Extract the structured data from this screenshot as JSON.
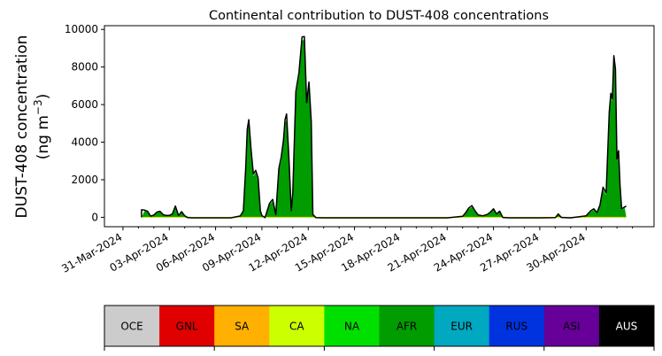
{
  "chart_data": {
    "type": "area",
    "title": "Continental contribution to DUST-408 concentrations",
    "ylabel_main": "DUST-408 concentration",
    "ylabel_unit": "(ng m",
    "ylabel_unit_sup": "−3",
    "ylabel_unit_close": ")",
    "xlabel": "",
    "ylim": [
      -500,
      10200
    ],
    "xlim": [
      -1.2,
      34.4
    ],
    "yticks": [
      0,
      2000,
      4000,
      6000,
      8000,
      10000
    ],
    "ytick_labels": [
      "0",
      "2000",
      "4000",
      "6000",
      "8000",
      "10000"
    ],
    "xticks": [
      0,
      3,
      6,
      9,
      12,
      15,
      18,
      21,
      24,
      27,
      30
    ],
    "xtick_labels": [
      "31-Mar-2024",
      "03-Apr-2024",
      "06-Apr-2024",
      "09-Apr-2024",
      "12-Apr-2024",
      "15-Apr-2024",
      "18-Apr-2024",
      "21-Apr-2024",
      "24-Apr-2024",
      "27-Apr-2024",
      "30-Apr-2024"
    ],
    "x_unit": "days after 31-Mar-2024",
    "total_line_color": "#000000",
    "series": [
      {
        "name": "NA",
        "color": "#00e000",
        "points": [
          [
            1.2,
            0
          ],
          [
            1.4,
            350
          ],
          [
            1.6,
            300
          ],
          [
            1.8,
            50
          ],
          [
            2.0,
            100
          ],
          [
            2.2,
            250
          ],
          [
            2.4,
            300
          ],
          [
            2.6,
            120
          ],
          [
            2.8,
            80
          ],
          [
            3.0,
            80
          ],
          [
            3.2,
            150
          ],
          [
            3.4,
            500
          ],
          [
            3.6,
            80
          ],
          [
            3.8,
            250
          ],
          [
            4.0,
            60
          ],
          [
            4.2,
            30
          ],
          [
            4.5,
            20
          ],
          [
            5.0,
            20
          ],
          [
            6.0,
            20
          ],
          [
            7.0,
            20
          ],
          [
            7.6,
            50
          ],
          [
            7.8,
            300
          ],
          [
            7.95,
            2500
          ],
          [
            8.05,
            4500
          ],
          [
            8.15,
            5100
          ],
          [
            8.3,
            3500
          ],
          [
            8.45,
            2200
          ],
          [
            8.6,
            2400
          ],
          [
            8.75,
            2000
          ],
          [
            8.9,
            300
          ],
          [
            9.0,
            80
          ],
          [
            9.2,
            20
          ],
          [
            9.5,
            700
          ],
          [
            9.7,
            850
          ],
          [
            9.9,
            100
          ],
          [
            10.1,
            2500
          ],
          [
            10.25,
            3000
          ],
          [
            10.4,
            4000
          ],
          [
            10.5,
            5000
          ],
          [
            10.6,
            5200
          ],
          [
            10.75,
            3000
          ],
          [
            10.9,
            300
          ],
          [
            11.0,
            1200
          ],
          [
            11.2,
            6500
          ],
          [
            11.4,
            7500
          ],
          [
            11.6,
            9400
          ],
          [
            11.75,
            9500
          ],
          [
            11.9,
            6000
          ],
          [
            12.05,
            7000
          ],
          [
            12.2,
            5000
          ],
          [
            12.3,
            100
          ],
          [
            12.5,
            20
          ],
          [
            13,
            20
          ],
          [
            15,
            20
          ],
          [
            17,
            20
          ],
          [
            19,
            20
          ],
          [
            21,
            20
          ],
          [
            22,
            30
          ],
          [
            22.2,
            200
          ],
          [
            22.4,
            450
          ],
          [
            22.6,
            550
          ],
          [
            22.8,
            300
          ],
          [
            23.0,
            100
          ],
          [
            23.3,
            50
          ],
          [
            23.6,
            120
          ],
          [
            23.8,
            250
          ],
          [
            24.0,
            400
          ],
          [
            24.2,
            150
          ],
          [
            24.4,
            300
          ],
          [
            24.6,
            30
          ],
          [
            25,
            20
          ],
          [
            27,
            20
          ],
          [
            28.0,
            20
          ],
          [
            28.2,
            150
          ],
          [
            28.4,
            30
          ],
          [
            29,
            20
          ],
          [
            30.0,
            50
          ],
          [
            30.3,
            300
          ],
          [
            30.5,
            400
          ],
          [
            30.7,
            200
          ],
          [
            30.9,
            600
          ],
          [
            31.1,
            1500
          ],
          [
            31.3,
            1200
          ],
          [
            31.5,
            5500
          ],
          [
            31.6,
            6400
          ],
          [
            31.7,
            6200
          ],
          [
            31.8,
            8400
          ],
          [
            31.9,
            7800
          ],
          [
            32.0,
            3000
          ],
          [
            32.1,
            3400
          ],
          [
            32.2,
            1600
          ],
          [
            32.3,
            400
          ],
          [
            32.5,
            500
          ],
          [
            32.6,
            0
          ]
        ]
      },
      {
        "name": "AFR",
        "color": "#009c00",
        "points": [
          [
            1.2,
            0
          ],
          [
            1.4,
            330
          ],
          [
            1.6,
            280
          ],
          [
            1.8,
            40
          ],
          [
            2.0,
            90
          ],
          [
            2.2,
            230
          ],
          [
            2.4,
            280
          ],
          [
            2.6,
            110
          ],
          [
            2.8,
            70
          ],
          [
            3.0,
            70
          ],
          [
            3.2,
            140
          ],
          [
            3.4,
            480
          ],
          [
            3.6,
            70
          ],
          [
            3.8,
            230
          ],
          [
            4.0,
            50
          ],
          [
            4.2,
            20
          ],
          [
            4.5,
            10
          ],
          [
            5.0,
            10
          ],
          [
            6.0,
            10
          ],
          [
            7.0,
            10
          ],
          [
            7.6,
            40
          ],
          [
            7.8,
            280
          ],
          [
            7.95,
            2450
          ],
          [
            8.05,
            4450
          ],
          [
            8.15,
            5050
          ],
          [
            8.3,
            3450
          ],
          [
            8.45,
            2150
          ],
          [
            8.6,
            2350
          ],
          [
            8.75,
            1950
          ],
          [
            8.9,
            280
          ],
          [
            9.0,
            70
          ],
          [
            9.2,
            10
          ],
          [
            9.5,
            680
          ],
          [
            9.7,
            830
          ],
          [
            9.9,
            90
          ],
          [
            10.1,
            2450
          ],
          [
            10.25,
            2950
          ],
          [
            10.4,
            3950
          ],
          [
            10.5,
            4950
          ],
          [
            10.6,
            5150
          ],
          [
            10.75,
            2950
          ],
          [
            10.9,
            280
          ],
          [
            11.0,
            1150
          ],
          [
            11.2,
            6450
          ],
          [
            11.4,
            7450
          ],
          [
            11.6,
            9350
          ],
          [
            11.75,
            9450
          ],
          [
            11.9,
            5950
          ],
          [
            12.05,
            6950
          ],
          [
            12.2,
            4950
          ],
          [
            12.3,
            90
          ],
          [
            12.5,
            10
          ],
          [
            13,
            10
          ],
          [
            15,
            10
          ],
          [
            17,
            10
          ],
          [
            19,
            10
          ],
          [
            21,
            10
          ],
          [
            22,
            20
          ],
          [
            22.2,
            190
          ],
          [
            22.4,
            430
          ],
          [
            22.6,
            530
          ],
          [
            22.8,
            280
          ],
          [
            23.0,
            90
          ],
          [
            23.3,
            40
          ],
          [
            23.6,
            110
          ],
          [
            23.8,
            230
          ],
          [
            24.0,
            380
          ],
          [
            24.2,
            140
          ],
          [
            24.4,
            280
          ],
          [
            24.6,
            20
          ],
          [
            25,
            10
          ],
          [
            27,
            10
          ],
          [
            28.0,
            10
          ],
          [
            28.2,
            140
          ],
          [
            28.4,
            20
          ],
          [
            29,
            10
          ],
          [
            30.0,
            40
          ],
          [
            30.3,
            280
          ],
          [
            30.5,
            380
          ],
          [
            30.7,
            190
          ],
          [
            30.9,
            580
          ],
          [
            31.1,
            1450
          ],
          [
            31.3,
            1150
          ],
          [
            31.5,
            5450
          ],
          [
            31.6,
            6350
          ],
          [
            31.7,
            6150
          ],
          [
            31.8,
            8350
          ],
          [
            31.9,
            7750
          ],
          [
            32.0,
            2950
          ],
          [
            32.1,
            3350
          ],
          [
            32.2,
            1550
          ],
          [
            32.3,
            380
          ],
          [
            32.5,
            480
          ],
          [
            32.6,
            0
          ]
        ]
      }
    ],
    "total_points": [
      [
        1.2,
        0
      ],
      [
        1.2,
        400
      ],
      [
        1.4,
        380
      ],
      [
        1.6,
        320
      ],
      [
        1.8,
        60
      ],
      [
        2.0,
        120
      ],
      [
        2.2,
        280
      ],
      [
        2.4,
        320
      ],
      [
        2.6,
        140
      ],
      [
        2.8,
        100
      ],
      [
        3.0,
        100
      ],
      [
        3.2,
        180
      ],
      [
        3.4,
        600
      ],
      [
        3.6,
        100
      ],
      [
        3.8,
        300
      ],
      [
        4.0,
        80
      ],
      [
        4.2,
        -20
      ],
      [
        4.5,
        -30
      ],
      [
        5.0,
        -30
      ],
      [
        6.0,
        -30
      ],
      [
        7.0,
        -30
      ],
      [
        7.6,
        70
      ],
      [
        7.8,
        350
      ],
      [
        7.95,
        2600
      ],
      [
        8.05,
        4700
      ],
      [
        8.15,
        5200
      ],
      [
        8.3,
        3600
      ],
      [
        8.45,
        2300
      ],
      [
        8.6,
        2500
      ],
      [
        8.75,
        2100
      ],
      [
        8.9,
        350
      ],
      [
        9.0,
        100
      ],
      [
        9.2,
        -20
      ],
      [
        9.5,
        750
      ],
      [
        9.7,
        950
      ],
      [
        9.9,
        150
      ],
      [
        10.1,
        2600
      ],
      [
        10.25,
        3200
      ],
      [
        10.4,
        4100
      ],
      [
        10.5,
        5200
      ],
      [
        10.6,
        5500
      ],
      [
        10.75,
        3100
      ],
      [
        10.9,
        350
      ],
      [
        11.0,
        1300
      ],
      [
        11.2,
        6700
      ],
      [
        11.4,
        7700
      ],
      [
        11.6,
        9600
      ],
      [
        11.75,
        9620
      ],
      [
        11.9,
        6100
      ],
      [
        12.05,
        7200
      ],
      [
        12.2,
        5100
      ],
      [
        12.3,
        150
      ],
      [
        12.5,
        -20
      ],
      [
        13,
        -30
      ],
      [
        15,
        -30
      ],
      [
        17,
        -30
      ],
      [
        19,
        -30
      ],
      [
        21,
        -30
      ],
      [
        22,
        50
      ],
      [
        22.2,
        250
      ],
      [
        22.4,
        500
      ],
      [
        22.6,
        620
      ],
      [
        22.8,
        350
      ],
      [
        23.0,
        130
      ],
      [
        23.3,
        80
      ],
      [
        23.6,
        150
      ],
      [
        23.8,
        280
      ],
      [
        24.0,
        450
      ],
      [
        24.2,
        180
      ],
      [
        24.4,
        330
      ],
      [
        24.6,
        -10
      ],
      [
        25,
        -30
      ],
      [
        27,
        -30
      ],
      [
        28.0,
        -20
      ],
      [
        28.2,
        180
      ],
      [
        28.4,
        -10
      ],
      [
        29,
        -30
      ],
      [
        30.0,
        80
      ],
      [
        30.3,
        350
      ],
      [
        30.5,
        450
      ],
      [
        30.7,
        250
      ],
      [
        30.9,
        650
      ],
      [
        31.1,
        1600
      ],
      [
        31.3,
        1300
      ],
      [
        31.5,
        5600
      ],
      [
        31.6,
        6600
      ],
      [
        31.7,
        6300
      ],
      [
        31.8,
        8600
      ],
      [
        31.9,
        7900
      ],
      [
        32.0,
        3100
      ],
      [
        32.1,
        3550
      ],
      [
        32.2,
        1700
      ],
      [
        32.3,
        450
      ],
      [
        32.5,
        550
      ],
      [
        32.6,
        600
      ]
    ],
    "legend": [
      {
        "label": "OCE",
        "color": "#cccccc",
        "text_color": "#000000"
      },
      {
        "label": "GNL",
        "color": "#e00000",
        "text_color": "#000000"
      },
      {
        "label": "SA",
        "color": "#ffb000",
        "text_color": "#000000"
      },
      {
        "label": "CA",
        "color": "#ccff00",
        "text_color": "#000000"
      },
      {
        "label": "NA",
        "color": "#00e000",
        "text_color": "#000000"
      },
      {
        "label": "AFR",
        "color": "#009c00",
        "text_color": "#000000"
      },
      {
        "label": "EUR",
        "color": "#00a8c0",
        "text_color": "#000000"
      },
      {
        "label": "RUS",
        "color": "#0033e0",
        "text_color": "#000000"
      },
      {
        "label": "ASI",
        "color": "#660099",
        "text_color": "#000000"
      },
      {
        "label": "AUS",
        "color": "#000000",
        "text_color": "#ffffff"
      }
    ],
    "legend_placement": "bottom",
    "grid": false
  }
}
